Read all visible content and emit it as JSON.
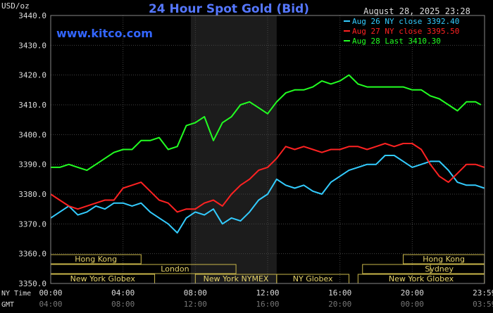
{
  "chart_data": {
    "type": "line",
    "title": "24 Hour Spot Gold (Bid)",
    "units_label": "USD/oz",
    "watermark": "www.kitco.com",
    "timestamp": "August 28, 2025 23:28",
    "ylim": [
      3350,
      3440
    ],
    "y_ticks": [
      "3440.0",
      "3430.0",
      "3420.0",
      "3410.0",
      "3400.0",
      "3390.0",
      "3380.0",
      "3370.0",
      "3360.0",
      "3350.0"
    ],
    "x_row_ny_label": "NY Time",
    "x_row_gmt_label": "GMT",
    "x_ticks_ny": [
      "00:00",
      "04:00",
      "08:00",
      "12:00",
      "16:00",
      "20:00",
      "23:59"
    ],
    "x_ticks_gmt": [
      "04:00",
      "08:00",
      "12:00",
      "16:00",
      "20:00",
      "00:00",
      "03:59"
    ],
    "shaded_session": {
      "from_hour": 7.75,
      "to_hour": 12.5
    },
    "sessions": [
      {
        "label": "Hong Kong",
        "row": 0,
        "segments": [
          [
            0,
            5.0
          ],
          [
            19.5,
            23.99
          ]
        ],
        "label_at": [
          [
            0,
            5.0
          ],
          [
            19.5,
            23.99
          ]
        ]
      },
      {
        "label": "London",
        "row": 1,
        "segments": [
          [
            0,
            10.25
          ],
          [
            21.0,
            23.99
          ]
        ],
        "label_at": [
          [
            3.5,
            10.25
          ]
        ]
      },
      {
        "label": "Sydney",
        "row": 1,
        "segments": [
          [
            17.25,
            21.0
          ],
          [
            21.0,
            23.99
          ]
        ],
        "label_at": [
          [
            19.0,
            23.99
          ]
        ]
      },
      {
        "label": "New York Globex",
        "row": 2,
        "segments": [
          [
            0,
            5.75
          ],
          [
            17.0,
            23.99
          ]
        ],
        "label_at": [
          [
            0,
            5.75
          ],
          [
            17.0,
            23.99
          ]
        ]
      },
      {
        "label": "New York NYMEX",
        "row": 2,
        "segments": [
          [
            8.0,
            12.5
          ]
        ],
        "label_at": [
          [
            8.0,
            12.5
          ]
        ]
      },
      {
        "label": "NY Globex",
        "row": 2,
        "segments": [
          [
            12.5,
            16.5
          ]
        ],
        "label_at": [
          [
            12.5,
            16.5
          ]
        ]
      }
    ],
    "series": [
      {
        "name": "Aug 26 NY close 3392.40",
        "color": "#33ccff",
        "x": [
          0,
          0.5,
          1.0,
          1.5,
          2.0,
          2.5,
          3.0,
          3.5,
          4.0,
          4.5,
          5.0,
          5.5,
          6.0,
          6.5,
          7.0,
          7.5,
          8.0,
          8.5,
          9.0,
          9.5,
          10.0,
          10.5,
          11.0,
          11.5,
          12.0,
          12.5,
          13.0,
          13.5,
          14.0,
          14.5,
          15.0,
          15.5,
          16.0,
          16.5,
          17.0,
          17.5,
          18.0,
          18.5,
          19.0,
          19.5,
          20.0,
          20.5,
          21.0,
          21.5,
          22.0,
          22.5,
          23.0,
          23.5,
          23.99
        ],
        "values": [
          3372,
          3374,
          3376,
          3373,
          3374,
          3376,
          3375,
          3377,
          3377,
          3376,
          3377,
          3374,
          3372,
          3370,
          3367,
          3372,
          3374,
          3373,
          3375,
          3370,
          3372,
          3371,
          3374,
          3378,
          3380,
          3385,
          3383,
          3382,
          3383,
          3381,
          3380,
          3384,
          3386,
          3388,
          3389,
          3390,
          3390,
          3393,
          3393,
          3391,
          3389,
          3390,
          3391,
          3391,
          3388,
          3384,
          3383,
          3383,
          3382
        ]
      },
      {
        "name": "Aug 27 NY close 3395.50",
        "color": "#ff2222",
        "x": [
          0,
          0.5,
          1.0,
          1.5,
          2.0,
          2.5,
          3.0,
          3.5,
          4.0,
          4.5,
          5.0,
          5.5,
          6.0,
          6.5,
          7.0,
          7.5,
          8.0,
          8.5,
          9.0,
          9.5,
          10.0,
          10.5,
          11.0,
          11.5,
          12.0,
          12.5,
          13.0,
          13.5,
          14.0,
          14.5,
          15.0,
          15.5,
          16.0,
          16.5,
          17.0,
          17.5,
          18.0,
          18.5,
          19.0,
          19.5,
          20.0,
          20.5,
          21.0,
          21.5,
          22.0,
          22.5,
          23.0,
          23.5,
          23.99
        ],
        "values": [
          3380,
          3378,
          3376,
          3375,
          3376,
          3377,
          3378,
          3378,
          3382,
          3383,
          3384,
          3381,
          3378,
          3377,
          3374,
          3375,
          3375,
          3377,
          3378,
          3376,
          3380,
          3383,
          3385,
          3388,
          3389,
          3392,
          3396,
          3395,
          3396,
          3395,
          3394,
          3395,
          3395,
          3396,
          3396,
          3395,
          3396,
          3397,
          3396,
          3397,
          3397,
          3395,
          3390,
          3386,
          3384,
          3387,
          3390,
          3390,
          3389
        ]
      },
      {
        "name": "Aug 28 Last 3410.30",
        "color": "#22ff22",
        "x": [
          0,
          0.5,
          1.0,
          1.5,
          2.0,
          2.5,
          3.0,
          3.5,
          4.0,
          4.5,
          5.0,
          5.5,
          6.0,
          6.5,
          7.0,
          7.5,
          8.0,
          8.5,
          9.0,
          9.5,
          10.0,
          10.5,
          11.0,
          11.5,
          12.0,
          12.5,
          13.0,
          13.5,
          14.0,
          14.5,
          15.0,
          15.5,
          16.0,
          16.5,
          17.0,
          17.5,
          18.0,
          18.5,
          19.0,
          19.5,
          20.0,
          20.5,
          21.0,
          21.5,
          22.0,
          22.5,
          23.0,
          23.5,
          23.8
        ],
        "values": [
          3389,
          3389,
          3390,
          3389,
          3388,
          3390,
          3392,
          3394,
          3395,
          3395,
          3398,
          3398,
          3399,
          3395,
          3396,
          3403,
          3404,
          3406,
          3398,
          3404,
          3406,
          3410,
          3411,
          3409,
          3407,
          3411,
          3414,
          3415,
          3415,
          3416,
          3418,
          3417,
          3418,
          3420,
          3417,
          3416,
          3416,
          3416,
          3416,
          3416,
          3415,
          3415,
          3413,
          3412,
          3410,
          3408,
          3411,
          3411,
          3410
        ]
      }
    ]
  }
}
